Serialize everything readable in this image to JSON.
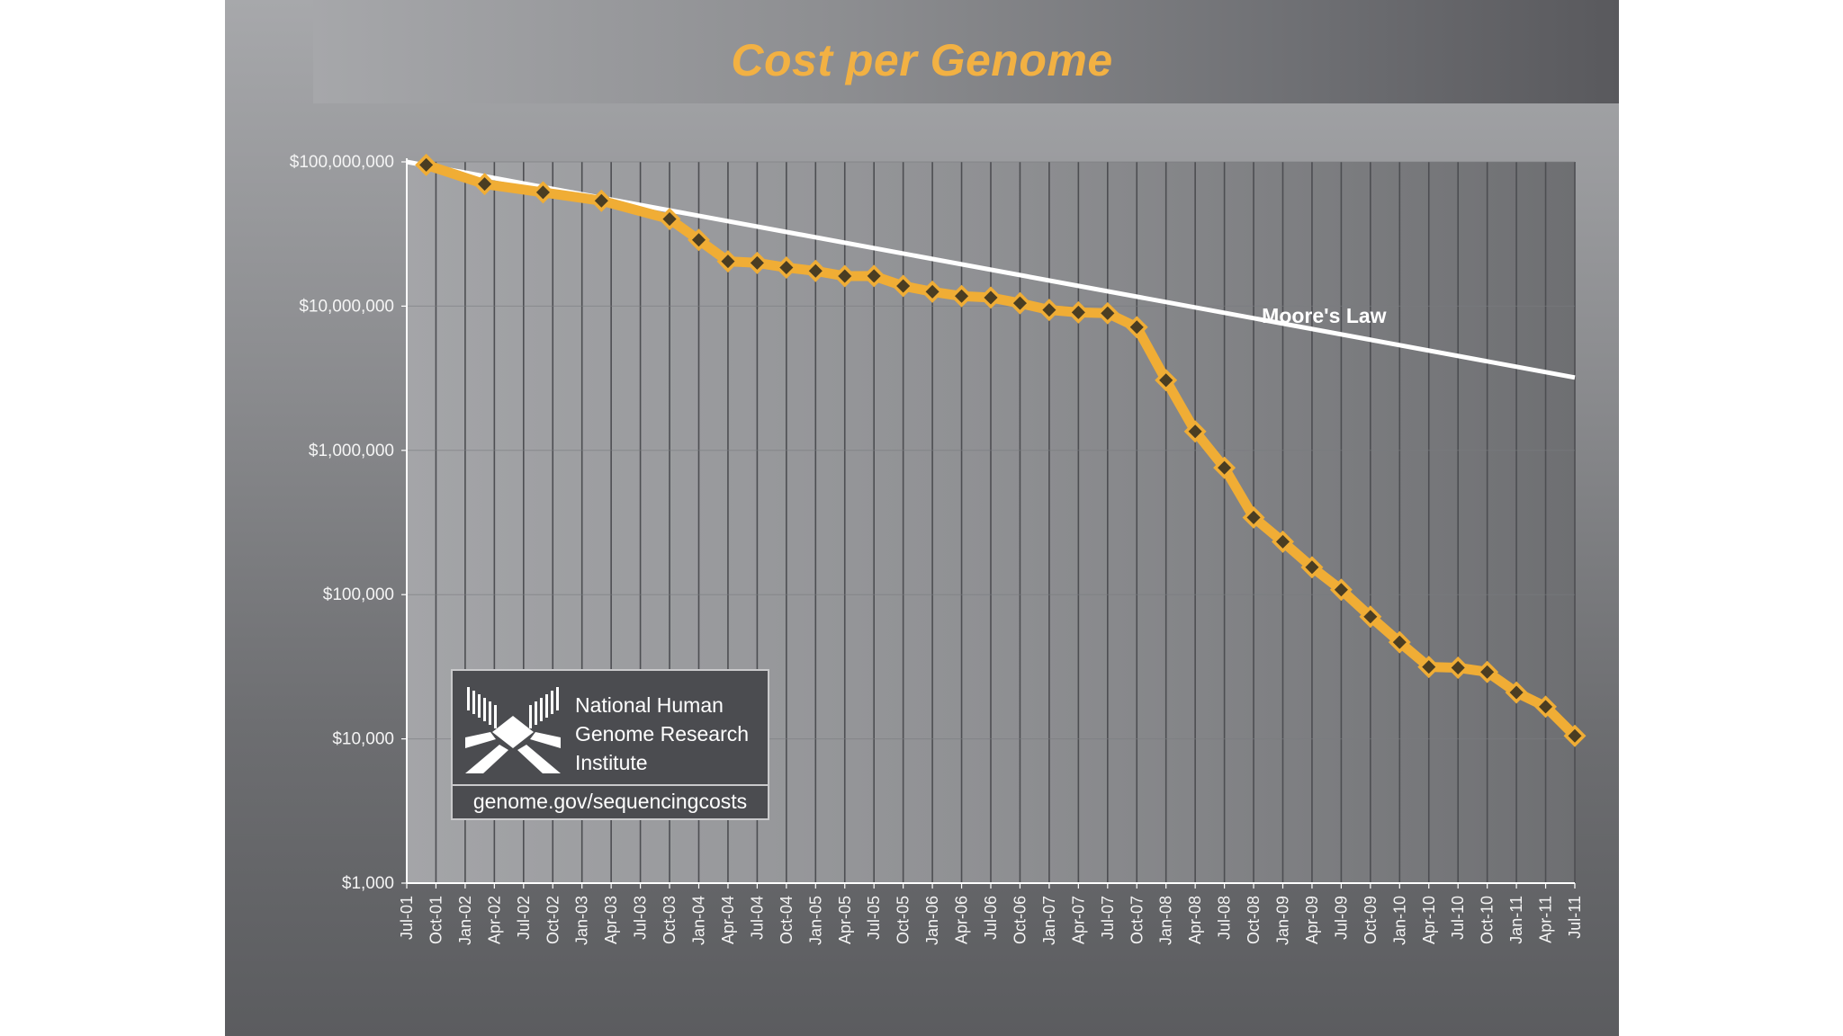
{
  "chart_data": {
    "type": "line",
    "title": "Cost per Genome",
    "y_scale": "log",
    "ylim": [
      1000,
      100000000
    ],
    "y_ticks": [
      {
        "value": 100000000,
        "label": "$100,000,000"
      },
      {
        "value": 10000000,
        "label": "$10,000,000"
      },
      {
        "value": 1000000,
        "label": "$1,000,000"
      },
      {
        "value": 100000,
        "label": "$100,000"
      },
      {
        "value": 10000,
        "label": "$10,000"
      },
      {
        "value": 1000,
        "label": "$1,000"
      }
    ],
    "grid": "vertical",
    "categories": [
      "Jul-01",
      "Oct-01",
      "Jan-02",
      "Apr-02",
      "Jul-02",
      "Oct-02",
      "Jan-03",
      "Apr-03",
      "Jul-03",
      "Oct-03",
      "Jan-04",
      "Apr-04",
      "Jul-04",
      "Oct-04",
      "Jan-05",
      "Apr-05",
      "Jul-05",
      "Oct-05",
      "Jan-06",
      "Apr-06",
      "Jul-06",
      "Oct-06",
      "Jan-07",
      "Apr-07",
      "Jul-07",
      "Oct-07",
      "Jan-08",
      "Apr-08",
      "Jul-08",
      "Oct-08",
      "Jan-09",
      "Apr-09",
      "Jul-09",
      "Oct-09",
      "Jan-10",
      "Apr-10",
      "Jul-10",
      "Oct-10",
      "Jan-11",
      "Apr-11",
      "Jul-11"
    ],
    "series": [
      {
        "name": "",
        "color": "#f0ad35",
        "marker": "diamond",
        "points": [
          {
            "x": "Sep-01",
            "y": 95263072
          },
          {
            "x": "Mar-02",
            "y": 70175437
          },
          {
            "x": "Sep-02",
            "y": 61448422
          },
          {
            "x": "Mar-03",
            "y": 53751684
          },
          {
            "x": "Oct-03",
            "y": 40157554
          },
          {
            "x": "Jan-04",
            "y": 28780376
          },
          {
            "x": "Apr-04",
            "y": 20442576
          },
          {
            "x": "Jul-04",
            "y": 19934346
          },
          {
            "x": "Oct-04",
            "y": 18519312
          },
          {
            "x": "Jan-05",
            "y": 17534970
          },
          {
            "x": "Apr-05",
            "y": 16159699
          },
          {
            "x": "Jul-05",
            "y": 16180224
          },
          {
            "x": "Oct-05",
            "y": 13801124
          },
          {
            "x": "Jan-06",
            "y": 12585659
          },
          {
            "x": "Apr-06",
            "y": 11732535
          },
          {
            "x": "Jul-06",
            "y": 11455315
          },
          {
            "x": "Oct-06",
            "y": 10474556
          },
          {
            "x": "Jan-07",
            "y": 9408739
          },
          {
            "x": "Apr-07",
            "y": 9047003
          },
          {
            "x": "Jul-07",
            "y": 8927342
          },
          {
            "x": "Oct-07",
            "y": 7147571
          },
          {
            "x": "Jan-08",
            "y": 3063820
          },
          {
            "x": "Apr-08",
            "y": 1352982
          },
          {
            "x": "Jul-08",
            "y": 758071
          },
          {
            "x": "Oct-08",
            "y": 342502
          },
          {
            "x": "Jan-09",
            "y": 232735
          },
          {
            "x": "Apr-09",
            "y": 154714
          },
          {
            "x": "Jul-09",
            "y": 108065
          },
          {
            "x": "Oct-09",
            "y": 70333
          },
          {
            "x": "Jan-10",
            "y": 46774
          },
          {
            "x": "Apr-10",
            "y": 31512
          },
          {
            "x": "Jul-10",
            "y": 31125
          },
          {
            "x": "Oct-10",
            "y": 29092
          },
          {
            "x": "Jan-11",
            "y": 20963
          },
          {
            "x": "Apr-11",
            "y": 16712
          },
          {
            "x": "Jul-11",
            "y": 10497
          }
        ]
      },
      {
        "name": "Moore's Law",
        "color": "#ffffff",
        "marker": "none",
        "points": [
          {
            "x": "Jul-01",
            "y": 100000000
          },
          {
            "x": "Jul-11",
            "y": 3200000
          }
        ]
      }
    ]
  },
  "logo": {
    "lines": [
      "National Human",
      "Genome Research",
      "Institute"
    ],
    "url": "genome.gov/sequencingcosts"
  }
}
